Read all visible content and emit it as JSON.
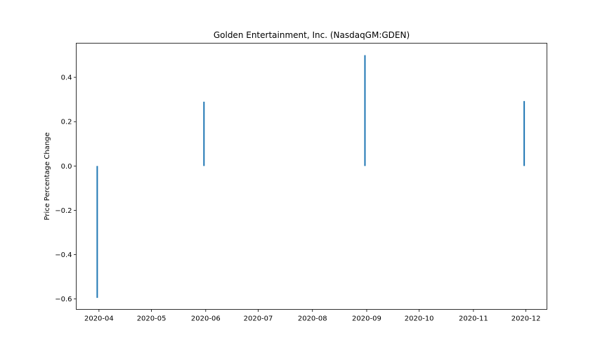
{
  "chart_data": {
    "type": "bar",
    "title": "Golden Entertainment, Inc. (NasdaqGM:GDEN)",
    "xlabel": "",
    "ylabel": "Price Percentage Change",
    "x_ticks": [
      "2020-04",
      "2020-05",
      "2020-06",
      "2020-07",
      "2020-08",
      "2020-09",
      "2020-10",
      "2020-11",
      "2020-12"
    ],
    "y_ticks": [
      -0.6,
      -0.4,
      -0.2,
      0.0,
      0.2,
      0.4
    ],
    "y_tick_labels": [
      "−0.6",
      "−0.4",
      "−0.2",
      "0.0",
      "0.2",
      "0.4"
    ],
    "xlim": [
      "2020-03-19",
      "2020-12-13"
    ],
    "ylim": [
      -0.647,
      0.554
    ],
    "grid": false,
    "series_color": "#1f77b4",
    "points": [
      {
        "date": "2020-03-31",
        "value": -0.595
      },
      {
        "date": "2020-05-31",
        "value": 0.29
      },
      {
        "date": "2020-08-31",
        "value": 0.5
      },
      {
        "date": "2020-11-30",
        "value": 0.293
      }
    ]
  }
}
